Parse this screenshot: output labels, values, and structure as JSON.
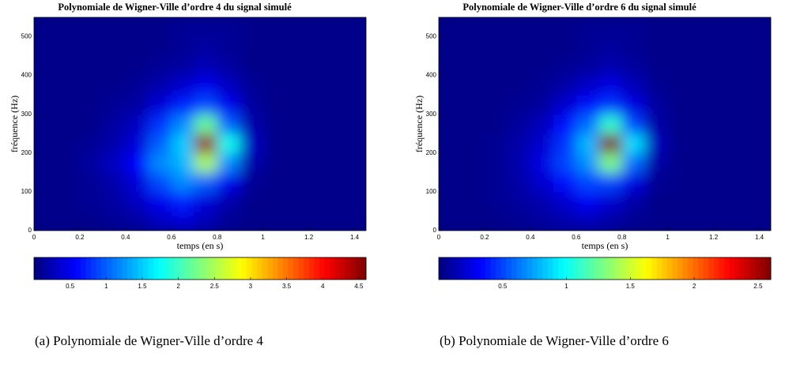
{
  "chart_data": [
    {
      "type": "heatmap",
      "title": "Polynomiale de Wigner-Ville d’ordre 4 du signal simulé",
      "xlabel": "temps (en s)",
      "ylabel": "fréquence (Hz)",
      "xlim": [
        0,
        1.45
      ],
      "ylim": [
        0,
        550
      ],
      "xticks": [
        0,
        0.2,
        0.4,
        0.6,
        0.8,
        1,
        1.2,
        1.4
      ],
      "yticks": [
        0,
        100,
        200,
        300,
        400,
        500
      ],
      "x": [
        0.05,
        0.15,
        0.25,
        0.35,
        0.45,
        0.55,
        0.65,
        0.75,
        0.85,
        0.95,
        1.05,
        1.15,
        1.25,
        1.35,
        1.45
      ],
      "y": [
        25,
        75,
        125,
        175,
        225,
        275,
        325,
        375,
        425,
        475,
        525
      ],
      "z": [
        [
          0.05,
          0.05,
          0.05,
          0.1,
          0.15,
          0.3,
          0.4,
          0.25,
          0.1,
          0.05,
          0.05,
          0.05,
          0.05,
          0.05,
          0.05
        ],
        [
          0.05,
          0.05,
          0.1,
          0.15,
          0.3,
          0.5,
          0.7,
          0.4,
          0.2,
          0.05,
          0.05,
          0.05,
          0.05,
          0.05,
          0.05
        ],
        [
          0.05,
          0.05,
          0.1,
          0.2,
          0.4,
          0.9,
          1.2,
          1,
          0.5,
          0.1,
          0.05,
          0.05,
          0.05,
          0.05,
          0.05
        ],
        [
          0.05,
          0.05,
          0.15,
          0.3,
          0.6,
          1.2,
          1.4,
          2.5,
          1.2,
          0.2,
          0.05,
          0.05,
          0.05,
          0.05,
          0.05
        ],
        [
          0.05,
          0.05,
          0.1,
          0.2,
          0.4,
          1,
          1.5,
          4.5,
          1.8,
          0.3,
          0.05,
          0.05,
          0.05,
          0.05,
          0.05
        ],
        [
          0.05,
          0.05,
          0.05,
          0.15,
          0.3,
          0.8,
          1.2,
          2.2,
          1,
          0.2,
          0.05,
          0.05,
          0.05,
          0.05,
          0.05
        ],
        [
          0.05,
          0.05,
          0.05,
          0.1,
          0.15,
          0.4,
          0.7,
          0.9,
          0.5,
          0.15,
          0.05,
          0.05,
          0.05,
          0.05,
          0.05
        ],
        [
          0.05,
          0.05,
          0.05,
          0.05,
          0.1,
          0.2,
          0.35,
          0.5,
          0.3,
          0.1,
          0.05,
          0.05,
          0.05,
          0.05,
          0.05
        ],
        [
          0.05,
          0.05,
          0.05,
          0.05,
          0.05,
          0.1,
          0.15,
          0.25,
          0.15,
          0.05,
          0.05,
          0.05,
          0.05,
          0.05,
          0.05
        ],
        [
          0.05,
          0.05,
          0.05,
          0.05,
          0.05,
          0.05,
          0.1,
          0.15,
          0.1,
          0.05,
          0.05,
          0.05,
          0.05,
          0.05,
          0.05
        ],
        [
          0.05,
          0.05,
          0.05,
          0.05,
          0.05,
          0.05,
          0.1,
          0.1,
          0.1,
          0.05,
          0.05,
          0.05,
          0.05,
          0.05,
          0.05
        ]
      ],
      "clim": [
        0,
        4.6
      ],
      "colorbar_ticks": [
        0.5,
        1,
        1.5,
        2,
        2.5,
        3,
        3.5,
        4,
        4.5
      ],
      "colormap": "jet",
      "caption": "(a) Polynomiale de Wigner-Ville d’ordre 4"
    },
    {
      "type": "heatmap",
      "title": "Polynomiale de Wigner-Ville d’ordre 6 du signal simulé",
      "xlabel": "temps (en s)",
      "ylabel": "fréquence (Hz)",
      "xlim": [
        0,
        1.45
      ],
      "ylim": [
        0,
        550
      ],
      "xticks": [
        0,
        0.2,
        0.4,
        0.6,
        0.8,
        1,
        1.2,
        1.4
      ],
      "yticks": [
        0,
        100,
        200,
        300,
        400,
        500
      ],
      "x": [
        0.05,
        0.15,
        0.25,
        0.35,
        0.45,
        0.55,
        0.65,
        0.75,
        0.85,
        0.95,
        1.05,
        1.15,
        1.25,
        1.35,
        1.45
      ],
      "y": [
        25,
        75,
        125,
        175,
        225,
        275,
        325,
        375,
        425,
        475,
        525
      ],
      "z": [
        [
          0.03,
          0.03,
          0.03,
          0.05,
          0.08,
          0.12,
          0.15,
          0.1,
          0.05,
          0.03,
          0.03,
          0.03,
          0.03,
          0.03,
          0.03
        ],
        [
          0.03,
          0.03,
          0.05,
          0.08,
          0.12,
          0.2,
          0.3,
          0.2,
          0.1,
          0.03,
          0.03,
          0.03,
          0.03,
          0.03,
          0.03
        ],
        [
          0.03,
          0.03,
          0.05,
          0.1,
          0.2,
          0.35,
          0.5,
          0.5,
          0.25,
          0.05,
          0.03,
          0.03,
          0.03,
          0.03,
          0.03
        ],
        [
          0.03,
          0.03,
          0.05,
          0.12,
          0.25,
          0.5,
          0.7,
          1.3,
          0.6,
          0.1,
          0.03,
          0.03,
          0.03,
          0.03,
          0.03
        ],
        [
          0.03,
          0.03,
          0.05,
          0.1,
          0.2,
          0.45,
          0.8,
          2.6,
          0.9,
          0.15,
          0.03,
          0.03,
          0.03,
          0.03,
          0.03
        ],
        [
          0.03,
          0.03,
          0.03,
          0.08,
          0.15,
          0.35,
          0.6,
          1.1,
          0.5,
          0.1,
          0.03,
          0.03,
          0.03,
          0.03,
          0.03
        ],
        [
          0.03,
          0.03,
          0.03,
          0.05,
          0.08,
          0.2,
          0.35,
          0.45,
          0.25,
          0.08,
          0.03,
          0.03,
          0.03,
          0.03,
          0.03
        ],
        [
          0.03,
          0.03,
          0.03,
          0.03,
          0.05,
          0.1,
          0.18,
          0.25,
          0.15,
          0.05,
          0.03,
          0.03,
          0.03,
          0.03,
          0.03
        ],
        [
          0.03,
          0.03,
          0.03,
          0.03,
          0.03,
          0.05,
          0.08,
          0.12,
          0.08,
          0.03,
          0.03,
          0.03,
          0.03,
          0.03,
          0.03
        ],
        [
          0.03,
          0.03,
          0.03,
          0.03,
          0.03,
          0.03,
          0.05,
          0.08,
          0.05,
          0.03,
          0.03,
          0.03,
          0.03,
          0.03,
          0.03
        ],
        [
          0.03,
          0.03,
          0.03,
          0.03,
          0.03,
          0.03,
          0.05,
          0.05,
          0.05,
          0.03,
          0.03,
          0.03,
          0.03,
          0.03,
          0.03
        ]
      ],
      "clim": [
        0,
        2.6
      ],
      "colorbar_ticks": [
        0.5,
        1,
        1.5,
        2,
        2.5
      ],
      "colormap": "jet",
      "caption": "(b) Polynomiale de Wigner-Ville d’ordre 6"
    }
  ]
}
